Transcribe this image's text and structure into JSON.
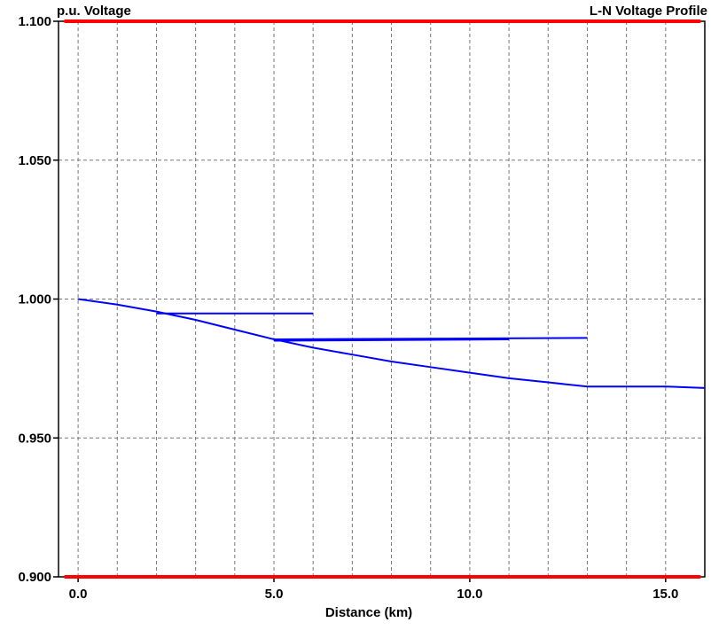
{
  "chart_data": {
    "type": "line",
    "title": "L-N Voltage Profile",
    "ylabel": "p.u. Voltage",
    "xlabel": "Distance (km)",
    "xlim": [
      -0.5,
      16.0
    ],
    "ylim": [
      0.9,
      1.1
    ],
    "x_ticks": [
      0.0,
      5.0,
      10.0,
      15.0
    ],
    "x_tick_labels": [
      "0.0",
      "5.0",
      "10.0",
      "15.0"
    ],
    "x_minor_gridlines": [
      0,
      1,
      2,
      3,
      4,
      5,
      6,
      7,
      8,
      9,
      10,
      11,
      12,
      13,
      14,
      15,
      16
    ],
    "y_ticks": [
      0.9,
      0.95,
      1.0,
      1.05,
      1.1
    ],
    "y_tick_labels": [
      "0.900",
      "0.950",
      "1.000",
      "1.050",
      "1.100"
    ],
    "grid": true,
    "limit_color": "#ff0000",
    "series_color": "#0000ff",
    "limits": [
      {
        "y": 1.1
      },
      {
        "y": 0.9
      }
    ],
    "series": [
      {
        "x": [
          0,
          1,
          2,
          3,
          4,
          5,
          6,
          7,
          8,
          9,
          10,
          11,
          12,
          13,
          14,
          15,
          16
        ],
        "y": [
          1.0,
          0.998,
          0.9955,
          0.9925,
          0.989,
          0.9855,
          0.9825,
          0.98,
          0.9775,
          0.9755,
          0.9735,
          0.9715,
          0.97,
          0.9685,
          0.9685,
          0.9685,
          0.968
        ]
      },
      {
        "x": [
          2,
          6
        ],
        "y": [
          0.9948,
          0.9948
        ]
      },
      {
        "x": [
          5,
          13
        ],
        "y": [
          0.9855,
          0.986
        ]
      },
      {
        "x": [
          5,
          11
        ],
        "y": [
          0.985,
          0.9855
        ]
      }
    ]
  }
}
